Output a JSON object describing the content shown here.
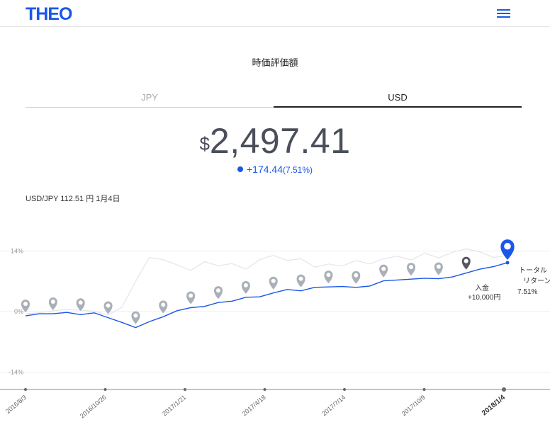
{
  "header": {
    "logo": "THEO",
    "menu_icon": "hamburger-icon"
  },
  "title": "時価評価額",
  "tabs": [
    {
      "label": "JPY",
      "active": false
    },
    {
      "label": "USD",
      "active": true
    }
  ],
  "valuation": {
    "currency": "$",
    "amount": "2,497.41"
  },
  "change": {
    "amount": "+174.44",
    "percent": "(7.51%)"
  },
  "fx_rate": "USD/JPY 112.51 円 1月4日",
  "colors": {
    "brand": "#1a57e8",
    "marker_gray": "#aab0b8",
    "benchmark": "#e3e5ea"
  },
  "chart_data": {
    "type": "line",
    "ylim": [
      -18,
      18
    ],
    "y_ticks": [
      "14%",
      "0%",
      "-14%"
    ],
    "y_tick_values": [
      14,
      0,
      -14
    ],
    "x_ticks": [
      "2016/8/3",
      "2016/10/26",
      "2017/1/21",
      "2017/4/18",
      "2017/7/14",
      "2017/10/9",
      "2018/1/4"
    ],
    "series": [
      {
        "values": [
          -1,
          -0.5,
          -0.5,
          -0.2,
          -0.7,
          -0.3,
          -1.4,
          -2.5,
          -3.7,
          -2.3,
          -1.2,
          0.2,
          0.9,
          1.2,
          2.1,
          2.4,
          3.3,
          3.4,
          4.3,
          5.1,
          4.8,
          5.6,
          5.7,
          5.8,
          5.6,
          5.9,
          7.1,
          7.3,
          7.5,
          7.7,
          7.6,
          8.0,
          8.9,
          9.8,
          10.4,
          11.3
        ]
      },
      {
        "values": [
          -0.5,
          -0.3,
          0.2,
          0.5,
          0.3,
          0.1,
          -0.8,
          1.0,
          7,
          12.5,
          12,
          10.8,
          9.5,
          11.5,
          10.6,
          11.1,
          9.8,
          12.0,
          13.0,
          11.8,
          12.2,
          10.3,
          11.0,
          10.5,
          11.8,
          11.0,
          12.2,
          12.8,
          11.9,
          13.5,
          12.4,
          13.7,
          14.5,
          13.8,
          12.5,
          13.0
        ]
      }
    ],
    "deposit_markers": [
      {
        "x": 0
      },
      {
        "x": 1
      },
      {
        "x": 2
      },
      {
        "x": 3
      },
      {
        "x": 4
      },
      {
        "x": 5
      },
      {
        "x": 6
      },
      {
        "x": 7
      },
      {
        "x": 8
      },
      {
        "x": 9
      },
      {
        "x": 10
      },
      {
        "x": 11
      },
      {
        "x": 12
      },
      {
        "x": 13
      },
      {
        "x": 14
      },
      {
        "x": 15
      },
      {
        "x": 16
      }
    ],
    "last_deposit": {
      "label": "入金",
      "amount": "+10,000円"
    },
    "total_return": {
      "label_line1": "トータル",
      "label_line2": "リターン",
      "value": "7.51%"
    }
  }
}
